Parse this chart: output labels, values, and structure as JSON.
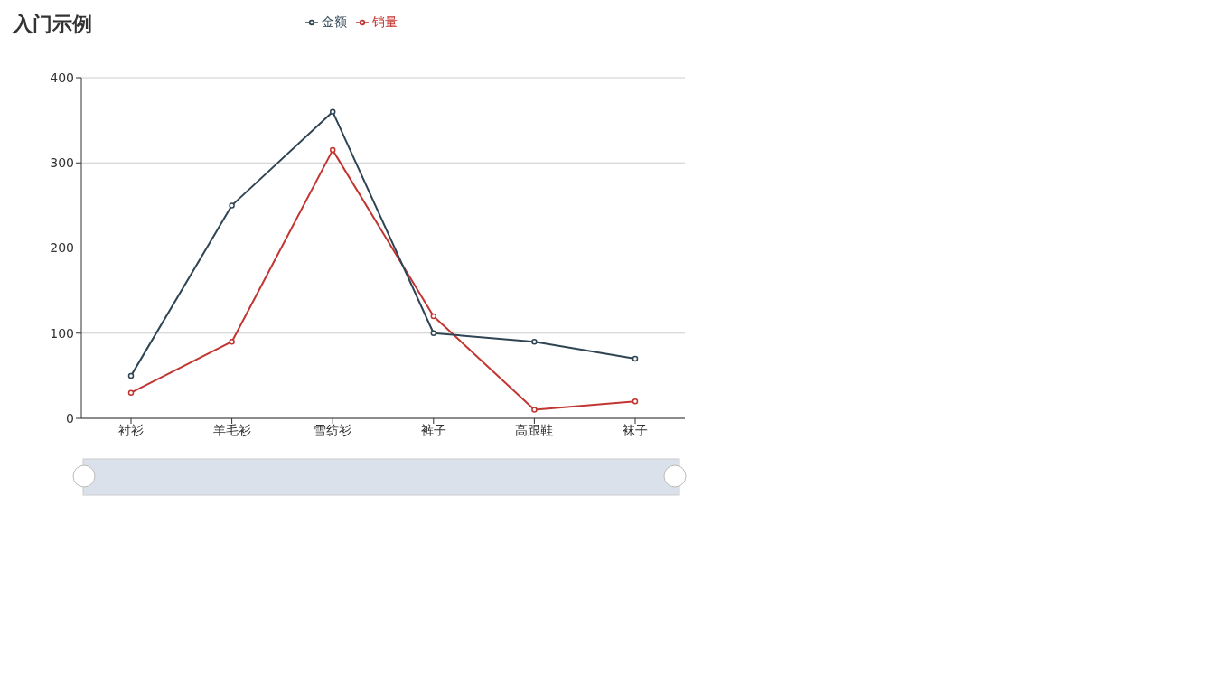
{
  "chart_data": {
    "type": "line",
    "title": "入门示例",
    "categories": [
      "衬衫",
      "羊毛衫",
      "雪纺衫",
      "裤子",
      "高跟鞋",
      "袜子"
    ],
    "series": [
      {
        "name": "销量",
        "color": "#c23531",
        "values": [
          30,
          90,
          315,
          120,
          10,
          20
        ]
      },
      {
        "name": "金额",
        "color": "#2f4554",
        "values": [
          50,
          250,
          360,
          100,
          90,
          70
        ]
      }
    ],
    "ylim": [
      0,
      400
    ],
    "yticks": [
      0,
      100,
      200,
      300,
      400
    ],
    "grid": "y",
    "legend": "top",
    "marker": "circle"
  }
}
